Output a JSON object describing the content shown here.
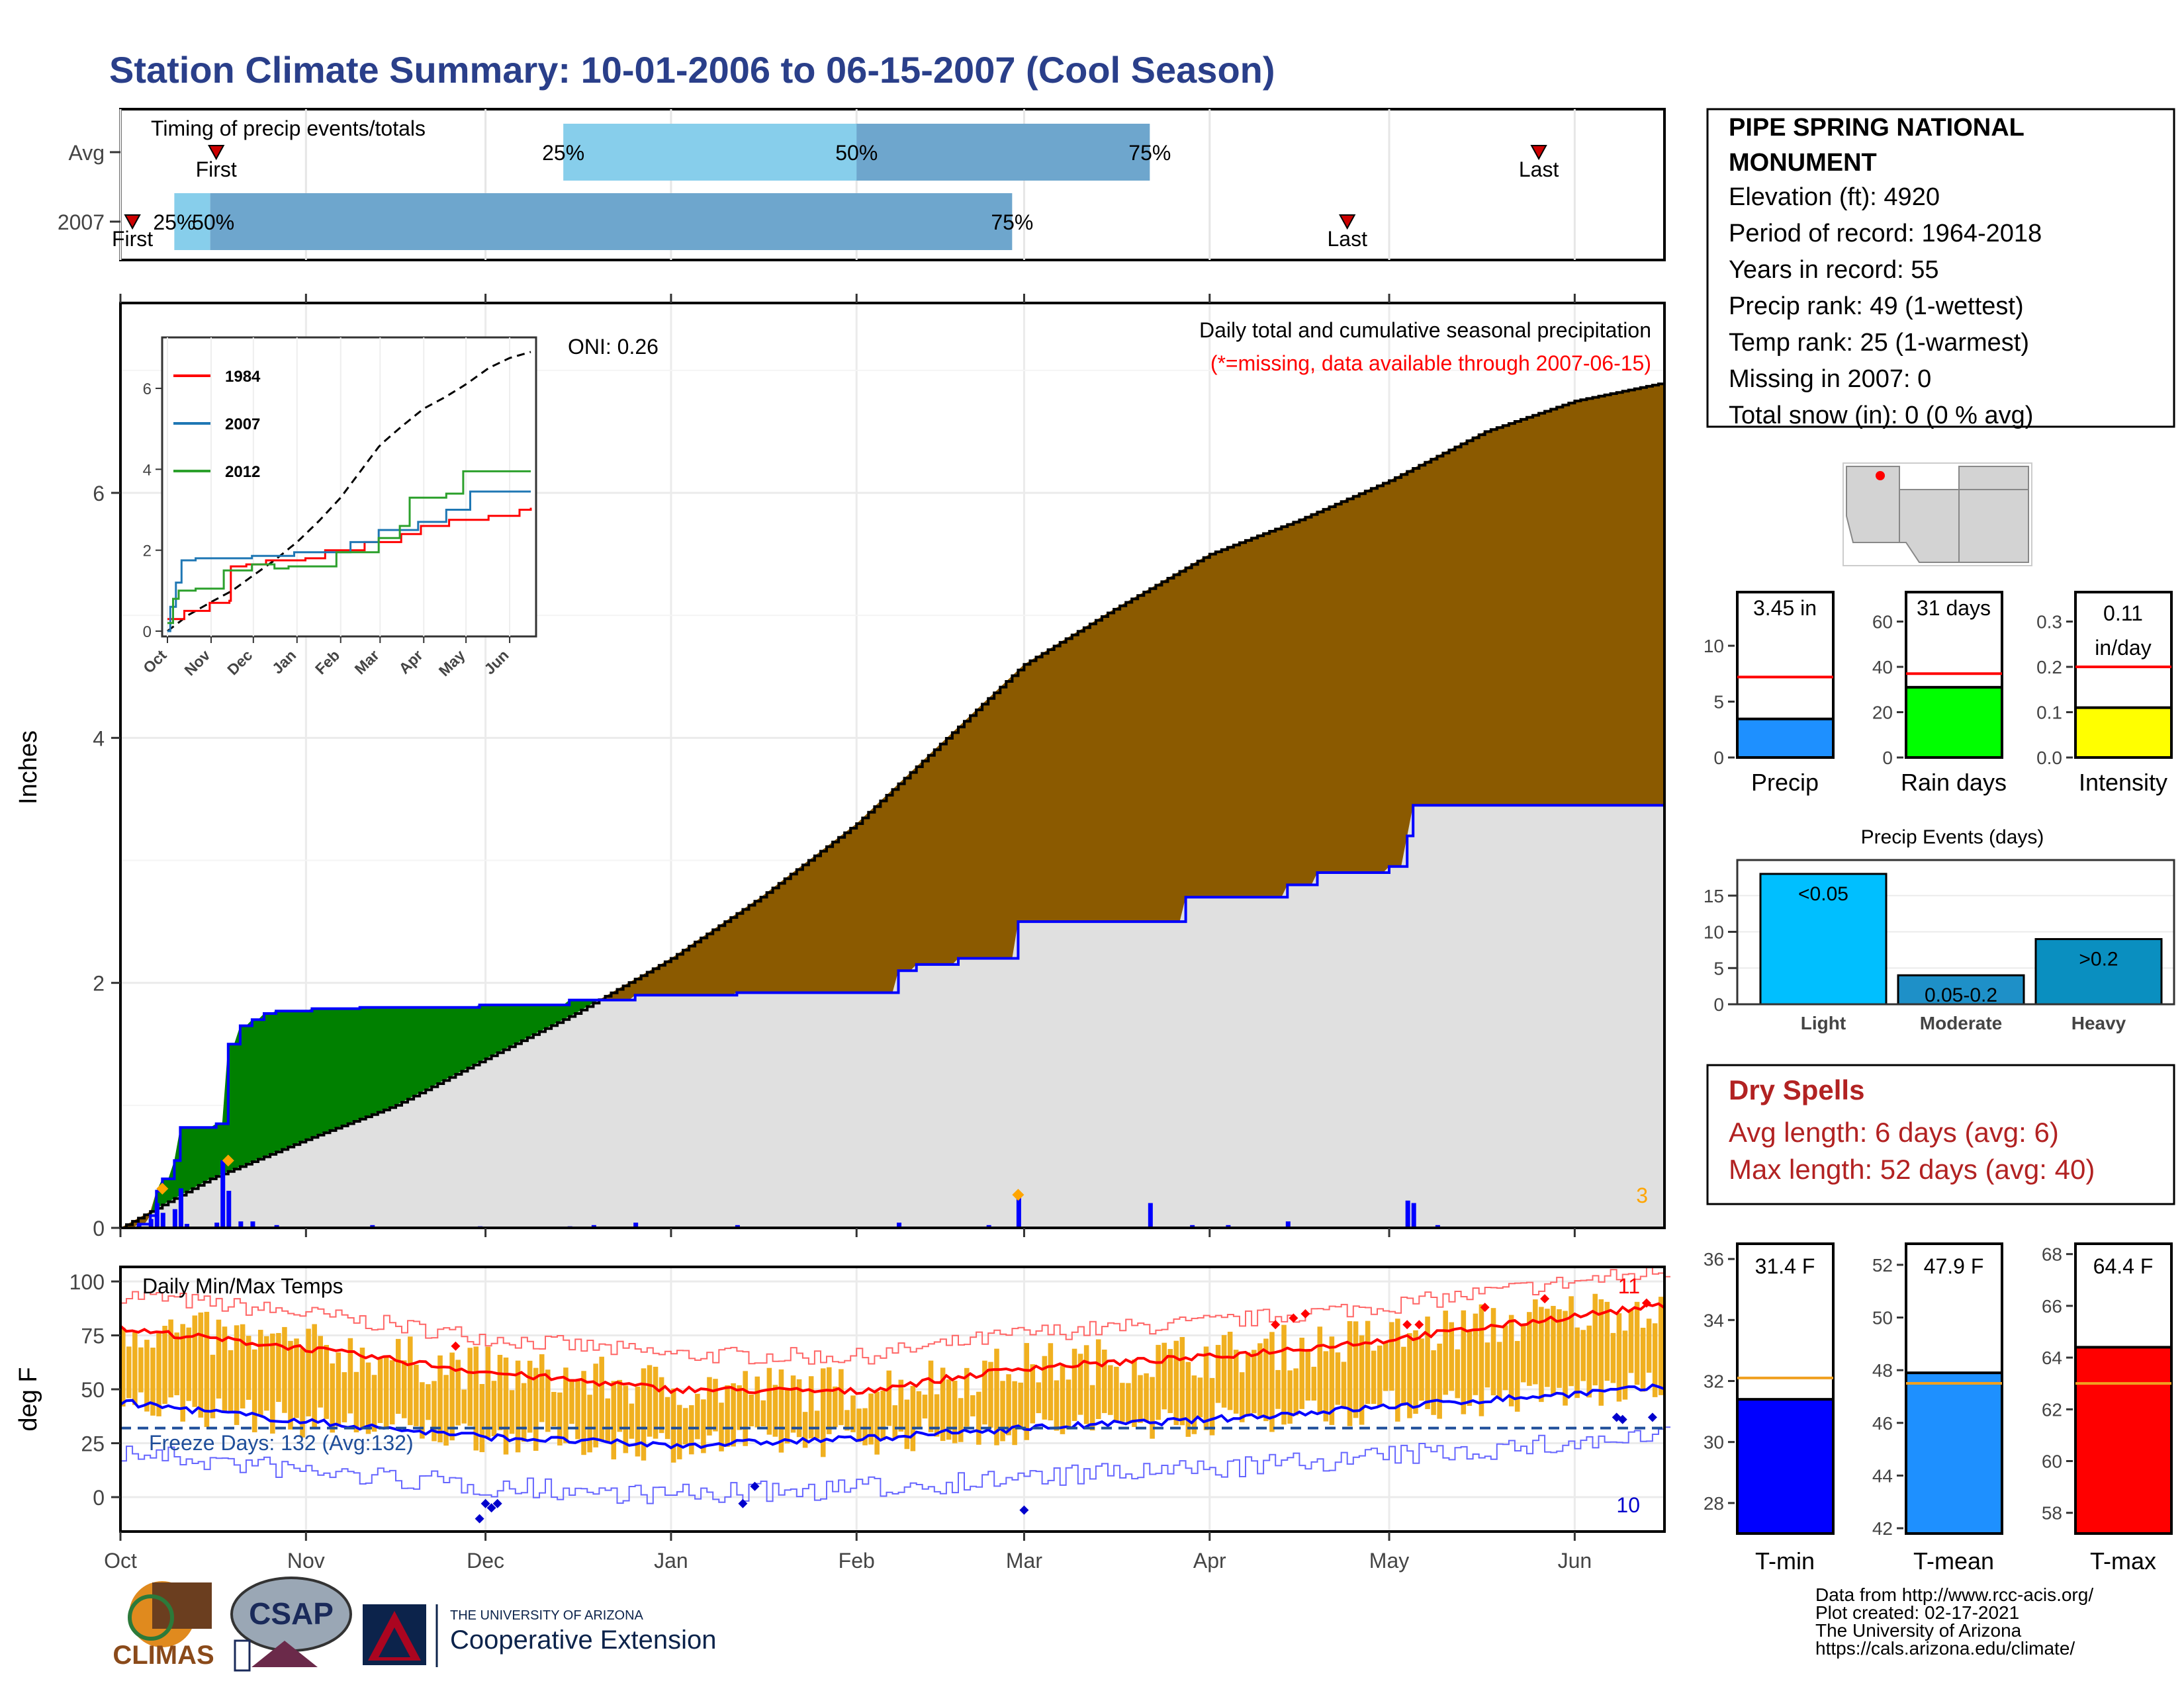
{
  "title": "Station Climate Summary: 10-01-2006 to 06-15-2007 (Cool Season)",
  "colors": {
    "title": "#2a3f8a",
    "brown": "#8b5a00",
    "green": "#008000",
    "gray_area": "#e0e0e0",
    "blue": "#0000ff",
    "red": "#ff0000",
    "orange": "#f0b020",
    "light_blue": "#87ceeb",
    "mid_blue": "#6ea6cd",
    "dark_red_text": "#b22222"
  },
  "timing": {
    "label": "Timing of precip events/totals",
    "rows": [
      "Avg",
      "2007"
    ],
    "avg": {
      "first": "First",
      "last": "Last",
      "p25": "25%",
      "p50": "50%",
      "p75": "75%"
    },
    "y2007": {
      "first": "First",
      "last": "Last",
      "p25": "25%",
      "p50": "50%",
      "p75": "75%"
    }
  },
  "station": {
    "name_line1": "PIPE SPRING NATIONAL",
    "name_line2": "MONUMENT",
    "elevation": "Elevation (ft): 4920",
    "period": "Period of record: 1964-2018",
    "years": "Years in record: 55",
    "precip_rank": "Precip rank: 49 (1-wettest)",
    "temp_rank": "Temp rank: 25 (1-warmest)",
    "missing": "Missing in 2007: 0",
    "snow": "Total snow (in): 0 (0 % avg)"
  },
  "main_plot": {
    "ylabel": "Inches",
    "oni": "ONI: 0.26",
    "note1": "Daily total and cumulative seasonal precipitation",
    "note2": "(*=missing, data available through 2007-06-15)",
    "count_label": "3",
    "y_ticks": [
      "0",
      "2",
      "4",
      "6"
    ],
    "months": [
      "Oct",
      "Nov",
      "Dec",
      "Jan",
      "Feb",
      "Mar",
      "Apr",
      "May",
      "Jun"
    ]
  },
  "inset": {
    "legend": [
      "1984",
      "2007",
      "2012"
    ],
    "y_ticks": [
      "0",
      "2",
      "4",
      "6"
    ],
    "months": [
      "Oct",
      "Nov",
      "Dec",
      "Jan",
      "Feb",
      "Mar",
      "Apr",
      "May",
      "Jun"
    ]
  },
  "bars_precip": {
    "precip": {
      "value_label": "3.45 in",
      "label": "Precip",
      "ticks": [
        "0",
        "5",
        "10"
      ]
    },
    "rain_days": {
      "value_label": "31 days",
      "label": "Rain days",
      "ticks": [
        "0",
        "20",
        "40",
        "60"
      ]
    },
    "intensity": {
      "value_label1": "0.11",
      "value_label2": "in/day",
      "label": "Intensity",
      "ticks": [
        "0.0",
        "0.1",
        "0.2",
        "0.3"
      ]
    }
  },
  "precip_events": {
    "title": "Precip Events (days)",
    "ticks": [
      "0",
      "5",
      "10",
      "15"
    ],
    "categories": [
      "Light",
      "Moderate",
      "Heavy"
    ],
    "bar_labels": [
      "<0.05",
      "0.05-0.2",
      ">0.2"
    ]
  },
  "dry_spells": {
    "title": "Dry Spells",
    "avg": "Avg length: 6 days (avg: 6)",
    "max": "Max length: 52 days (avg: 40)"
  },
  "temp_plot": {
    "ylabel": "deg F",
    "label": "Daily Min/Max Temps",
    "freeze": "Freeze Days: 132 (Avg:132)",
    "count_high": "11",
    "count_low": "10",
    "y_ticks": [
      "0",
      "25",
      "50",
      "75",
      "100"
    ],
    "months": [
      "Oct",
      "Nov",
      "Dec",
      "Jan",
      "Feb",
      "Mar",
      "Apr",
      "May",
      "Jun"
    ]
  },
  "temp_bars": {
    "tmin": {
      "value_label": "31.4 F",
      "label": "T-min",
      "ticks": [
        "28",
        "30",
        "32",
        "34",
        "36"
      ]
    },
    "tmean": {
      "value_label": "47.9 F",
      "label": "T-mean",
      "ticks": [
        "42",
        "44",
        "46",
        "48",
        "50",
        "52"
      ]
    },
    "tmax": {
      "value_label": "64.4 F",
      "label": "T-max",
      "ticks": [
        "58",
        "60",
        "62",
        "64",
        "66",
        "68"
      ]
    }
  },
  "footer": {
    "line1": "Data from http://www.rcc-acis.org/",
    "line2": "Plot created: 02-17-2021",
    "line3": "The University of Arizona",
    "line4": "https://cals.arizona.edu/climate/",
    "climas": "CLIMAS",
    "csap": "CSAP",
    "ua_small": "THE UNIVERSITY OF ARIZONA",
    "ua_big": "Cooperative Extension"
  },
  "chart_data": [
    {
      "type": "area",
      "title": "Daily total and cumulative seasonal precipitation",
      "ylabel": "Inches",
      "ylim": [
        0,
        7.5
      ],
      "categories": [
        "Oct",
        "Nov",
        "Dec",
        "Jan",
        "Feb",
        "Mar",
        "Apr",
        "May",
        "Jun"
      ],
      "series": [
        {
          "name": "2007",
          "x": [
            "2006-10-01",
            "2006-10-06",
            "2006-10-13",
            "2006-10-16",
            "2006-11-01",
            "2006-12-01",
            "2006-12-14",
            "2006-12-31",
            "2007-02-28",
            "2007-03-01",
            "2007-03-28",
            "2007-04-15",
            "2007-04-24",
            "2007-04-25",
            "2007-06-15"
          ],
          "values": [
            0.0,
            0.3,
            0.85,
            1.65,
            1.79,
            1.85,
            1.85,
            1.92,
            2.2,
            2.5,
            2.7,
            2.95,
            3.2,
            3.45,
            3.45
          ]
        },
        {
          "x": [
            "2006-10-01",
            "2006-11-01",
            "2006-12-01",
            "2007-01-01",
            "2007-02-01",
            "2007-03-01",
            "2007-04-01",
            "2007-05-01",
            "2007-06-15"
          ],
          "values": [
            0.0,
            0.72,
            1.38,
            2.2,
            3.3,
            4.6,
            5.5,
            6.1,
            6.9
          ]
        }
      ]
    },
    {
      "type": "line",
      "title": "Daily Min/Max Temps",
      "ylabel": "deg F",
      "ylim": [
        -25,
        105
      ],
      "categories": [
        "Oct",
        "Nov",
        "Dec",
        "Jan",
        "Feb",
        "Mar",
        "Apr",
        "May",
        "Jun"
      ],
      "series": [
        {
          "x": [
            1,
            31,
            62,
            93,
            124,
            152,
            183,
            213,
            244,
            258
          ],
          "values": [
            78,
            68,
            58,
            50,
            48,
            60,
            65,
            73,
            84,
            90
          ]
        },
        {
          "x": [
            1,
            31,
            62,
            93,
            124,
            152,
            183,
            213,
            244,
            258
          ],
          "values": [
            44,
            35,
            27,
            23,
            27,
            33,
            36,
            43,
            48,
            52
          ]
        }
      ],
      "freeze_line": 32
    },
    {
      "type": "bar",
      "categories": [
        "Precip",
        "Rain days",
        "Intensity"
      ],
      "values": [
        3.45,
        31,
        0.11
      ],
      "averages": [
        7.2,
        37,
        0.2
      ]
    },
    {
      "type": "bar",
      "title": "Precip Events (days)",
      "categories": [
        "Light",
        "Moderate",
        "Heavy"
      ],
      "values": [
        18,
        4,
        9
      ],
      "ylim": [
        0,
        19
      ]
    },
    {
      "type": "bar",
      "categories": [
        "T-min",
        "T-mean",
        "T-max"
      ],
      "values": [
        31.4,
        47.9,
        64.4
      ],
      "averages": [
        32.1,
        47.5,
        63.0
      ]
    }
  ]
}
